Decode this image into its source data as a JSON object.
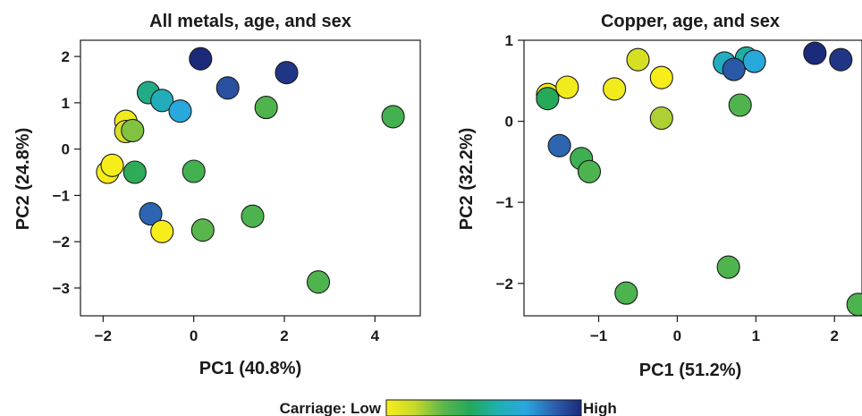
{
  "chart_data": [
    {
      "type": "scatter",
      "title": "All metals, age, and sex",
      "xlabel": "PC1 (40.8%)",
      "ylabel": "PC2 (24.8%)",
      "xlim": [
        -2.5,
        5.0
      ],
      "ylim": [
        -3.6,
        2.35
      ],
      "xticks": [
        -2,
        0,
        2,
        4
      ],
      "yticks": [
        -3,
        -2,
        -1,
        0,
        1,
        2
      ],
      "xtick_labels": [
        "−2",
        "0",
        "2",
        "4"
      ],
      "ytick_labels": [
        "−3",
        "−2",
        "−1",
        "0",
        "1",
        "2"
      ],
      "color_metric": "Carriage (0 = Low, 1 = High)",
      "points": [
        {
          "x": 0.15,
          "y": 1.95,
          "c": 1.0
        },
        {
          "x": 2.05,
          "y": 1.65,
          "c": 0.97
        },
        {
          "x": 0.75,
          "y": 1.32,
          "c": 0.9
        },
        {
          "x": -1.0,
          "y": 1.22,
          "c": 0.5
        },
        {
          "x": -0.7,
          "y": 1.05,
          "c": 0.6
        },
        {
          "x": -0.3,
          "y": 0.82,
          "c": 0.7
        },
        {
          "x": -1.5,
          "y": 0.6,
          "c": 0.02
        },
        {
          "x": -1.5,
          "y": 0.38,
          "c": 0.1
        },
        {
          "x": -1.35,
          "y": 0.4,
          "c": 0.24
        },
        {
          "x": 1.6,
          "y": 0.9,
          "c": 0.32
        },
        {
          "x": 4.4,
          "y": 0.7,
          "c": 0.35
        },
        {
          "x": -1.9,
          "y": -0.5,
          "c": 0.0
        },
        {
          "x": -1.8,
          "y": -0.35,
          "c": 0.0
        },
        {
          "x": -1.3,
          "y": -0.5,
          "c": 0.4
        },
        {
          "x": 0.0,
          "y": -0.48,
          "c": 0.35
        },
        {
          "x": -0.95,
          "y": -1.4,
          "c": 0.85
        },
        {
          "x": -0.7,
          "y": -1.78,
          "c": 0.0
        },
        {
          "x": 0.2,
          "y": -1.75,
          "c": 0.3
        },
        {
          "x": 1.3,
          "y": -1.45,
          "c": 0.33
        },
        {
          "x": 2.75,
          "y": -2.87,
          "c": 0.32
        }
      ]
    },
    {
      "type": "scatter",
      "title": "Copper, age, and sex",
      "xlabel": "PC1 (51.2%)",
      "ylabel": "PC2 (32.2%)",
      "xlim": [
        -1.95,
        2.35
      ],
      "ylim": [
        -2.4,
        1.0
      ],
      "xticks": [
        -1,
        0,
        1,
        2
      ],
      "yticks": [
        -2,
        -1,
        0,
        1
      ],
      "xtick_labels": [
        "−1",
        "0",
        "1",
        "2"
      ],
      "ytick_labels": [
        "−2",
        "−1",
        "0",
        "1"
      ],
      "color_metric": "Carriage (0 = Low, 1 = High)",
      "points": [
        {
          "x": -1.65,
          "y": 0.33,
          "c": 0.02
        },
        {
          "x": -1.65,
          "y": 0.28,
          "c": 0.42
        },
        {
          "x": -1.4,
          "y": 0.42,
          "c": 0.02
        },
        {
          "x": -0.8,
          "y": 0.4,
          "c": 0.02
        },
        {
          "x": -0.5,
          "y": 0.76,
          "c": 0.1
        },
        {
          "x": -0.2,
          "y": 0.54,
          "c": 0.0
        },
        {
          "x": -0.2,
          "y": 0.04,
          "c": 0.18
        },
        {
          "x": 0.6,
          "y": 0.72,
          "c": 0.62
        },
        {
          "x": 0.88,
          "y": 0.78,
          "c": 0.55
        },
        {
          "x": 0.98,
          "y": 0.74,
          "c": 0.7
        },
        {
          "x": 0.72,
          "y": 0.64,
          "c": 0.88
        },
        {
          "x": 0.8,
          "y": 0.2,
          "c": 0.32
        },
        {
          "x": 1.75,
          "y": 0.84,
          "c": 1.0
        },
        {
          "x": 2.08,
          "y": 0.76,
          "c": 0.97
        },
        {
          "x": -1.5,
          "y": -0.3,
          "c": 0.85
        },
        {
          "x": -1.22,
          "y": -0.46,
          "c": 0.36
        },
        {
          "x": -1.12,
          "y": -0.62,
          "c": 0.33
        },
        {
          "x": 0.65,
          "y": -1.8,
          "c": 0.32
        },
        {
          "x": -0.65,
          "y": -2.12,
          "c": 0.33
        },
        {
          "x": 2.3,
          "y": -2.26,
          "c": 0.33
        }
      ]
    }
  ],
  "legend": {
    "prefix": "Carriage: Low",
    "suffix": "High",
    "colors": [
      "#f7ed1a",
      "#c9d92a",
      "#5fb84a",
      "#22a85a",
      "#1fb0b0",
      "#29a7e0",
      "#2d62b0",
      "#1c2a7a"
    ]
  }
}
